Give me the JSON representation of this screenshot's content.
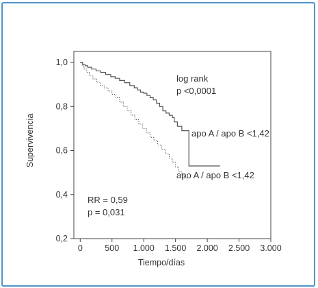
{
  "chart_data": {
    "type": "line",
    "title": "",
    "xlabel": "Tiempo/días",
    "ylabel": "Supervivencia",
    "xlim": [
      -100,
      3000
    ],
    "ylim": [
      0.2,
      1.05
    ],
    "x_ticks": [
      0,
      500,
      1000,
      1500,
      2000,
      2500,
      3000
    ],
    "x_tick_labels": [
      "0",
      "500",
      "1.000",
      "1.500",
      "2.000",
      "2.500",
      "3.000"
    ],
    "y_ticks": [
      0.2,
      0.4,
      0.6,
      0.8,
      1.0
    ],
    "y_tick_labels": [
      "0,2",
      "0,4",
      "0,6",
      "0,8",
      "1,0"
    ],
    "grid": false,
    "legend": "none",
    "annotations": {
      "logrank_line1": "log rank",
      "logrank_line2": "p <0,0001",
      "rr_line1": "RR = 0,59",
      "rr_line2": "p = 0,031"
    },
    "series": [
      {
        "name": "apo A / apo B <1,42",
        "style": "solid",
        "color": "#555555",
        "points": [
          [
            0,
            1.0
          ],
          [
            40,
            0.99
          ],
          [
            80,
            0.985
          ],
          [
            120,
            0.978
          ],
          [
            180,
            0.97
          ],
          [
            250,
            0.962
          ],
          [
            320,
            0.955
          ],
          [
            400,
            0.945
          ],
          [
            480,
            0.935
          ],
          [
            550,
            0.928
          ],
          [
            620,
            0.918
          ],
          [
            700,
            0.908
          ],
          [
            780,
            0.895
          ],
          [
            850,
            0.885
          ],
          [
            900,
            0.875
          ],
          [
            950,
            0.865
          ],
          [
            1000,
            0.86
          ],
          [
            1050,
            0.85
          ],
          [
            1100,
            0.84
          ],
          [
            1150,
            0.83
          ],
          [
            1200,
            0.815
          ],
          [
            1250,
            0.8
          ],
          [
            1300,
            0.78
          ],
          [
            1350,
            0.77
          ],
          [
            1400,
            0.76
          ],
          [
            1450,
            0.75
          ],
          [
            1480,
            0.73
          ],
          [
            1530,
            0.71
          ],
          [
            1600,
            0.69
          ],
          [
            1700,
            0.69
          ],
          [
            1710,
            0.53
          ],
          [
            2200,
            0.53
          ]
        ]
      },
      {
        "name": "apo A / apo B <1,42",
        "style": "dotted",
        "color": "#555555",
        "points": [
          [
            0,
            1.0
          ],
          [
            30,
            0.985
          ],
          [
            60,
            0.97
          ],
          [
            100,
            0.955
          ],
          [
            150,
            0.94
          ],
          [
            200,
            0.925
          ],
          [
            260,
            0.91
          ],
          [
            320,
            0.895
          ],
          [
            380,
            0.885
          ],
          [
            440,
            0.87
          ],
          [
            500,
            0.855
          ],
          [
            560,
            0.84
          ],
          [
            620,
            0.82
          ],
          [
            680,
            0.8
          ],
          [
            740,
            0.78
          ],
          [
            800,
            0.76
          ],
          [
            860,
            0.74
          ],
          [
            920,
            0.72
          ],
          [
            980,
            0.7
          ],
          [
            1040,
            0.68
          ],
          [
            1100,
            0.66
          ],
          [
            1160,
            0.645
          ],
          [
            1220,
            0.625
          ],
          [
            1280,
            0.605
          ],
          [
            1340,
            0.585
          ],
          [
            1400,
            0.565
          ],
          [
            1450,
            0.545
          ],
          [
            1500,
            0.525
          ],
          [
            1550,
            0.505
          ],
          [
            1600,
            0.49
          ],
          [
            1640,
            0.475
          ],
          [
            1680,
            0.465
          ]
        ]
      }
    ]
  }
}
